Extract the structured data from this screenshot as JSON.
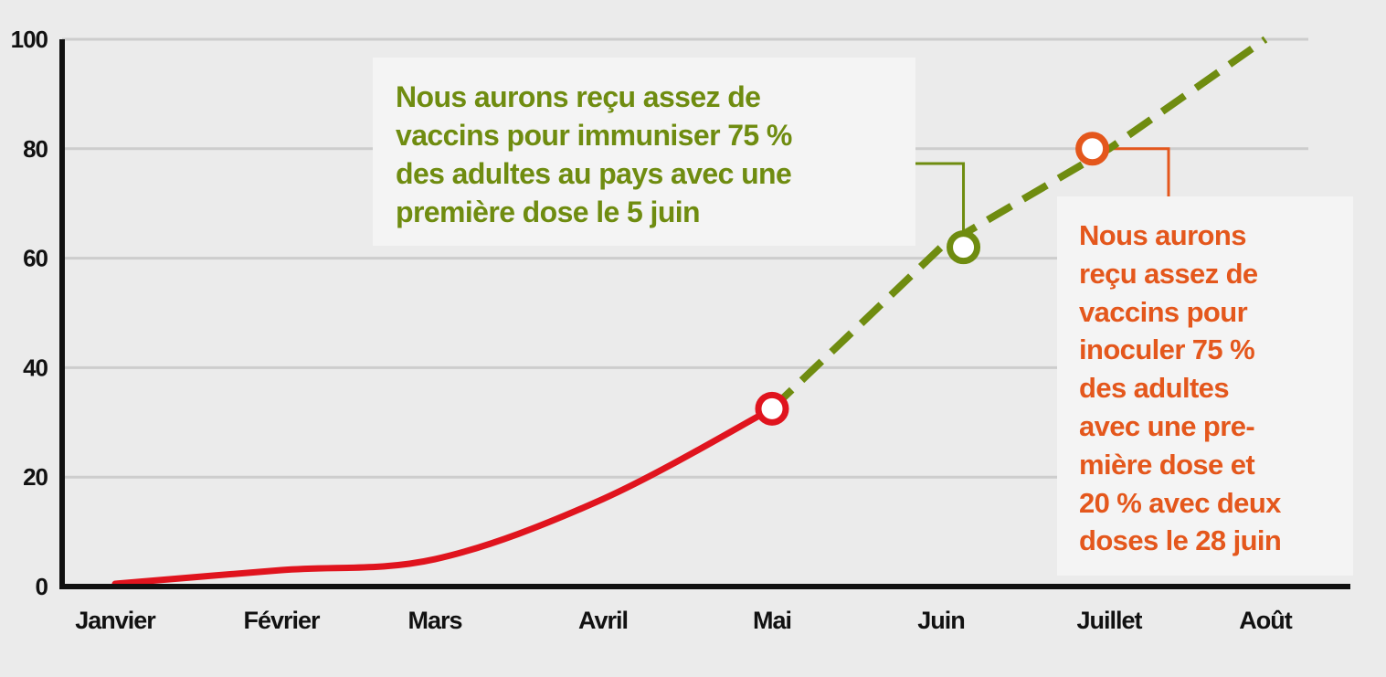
{
  "chart_data": {
    "type": "line",
    "title": "",
    "xlabel": "",
    "ylabel": "",
    "x_categories": [
      "Janvier",
      "Février",
      "Mars",
      "Avril",
      "Mai",
      "Juin",
      "Juillet",
      "Août"
    ],
    "y_ticks": [
      0,
      20,
      40,
      60,
      80,
      100
    ],
    "ylim": [
      0,
      100
    ],
    "grid": "horizontal",
    "series": [
      {
        "style": "solid",
        "color": "#e0141e",
        "points": [
          {
            "x": "Janvier",
            "y": 0.5
          },
          {
            "x": "Février",
            "y": 3
          },
          {
            "x": "Mars",
            "y": 5
          },
          {
            "x": "Avril",
            "y": 16
          },
          {
            "x": "Mai",
            "y": 32.5
          }
        ]
      },
      {
        "style": "dashed",
        "color": "#6f8c10",
        "points": [
          {
            "x": "Mai",
            "y": 32.5
          },
          {
            "x": "Juin",
            "y": 62
          },
          {
            "x": "Juillet",
            "y": 80
          },
          {
            "x": "Août",
            "y": 100
          }
        ]
      }
    ],
    "markers": [
      {
        "x": "Mai",
        "y": 32.5,
        "color": "#e0141e"
      },
      {
        "x": "5 juin",
        "y": 62,
        "color": "#6f8c10"
      },
      {
        "x": "28 juin",
        "y": 80,
        "color": "#e4571c"
      }
    ],
    "annotations": [
      {
        "color": "#6f8c10",
        "lines": [
          "Nous aurons reçu assez de",
          "vaccins pour immuniser 75 %",
          "des adultes au pays avec une",
          "première dose le 5 juin"
        ]
      },
      {
        "color": "#e4571c",
        "lines": [
          "Nous aurons",
          "reçu assez de",
          "vaccins pour",
          "inoculer 75 %",
          "des adultes",
          "avec une pre-",
          "mière dose et",
          "20 % avec deux",
          "doses le 28 juin"
        ]
      }
    ]
  }
}
